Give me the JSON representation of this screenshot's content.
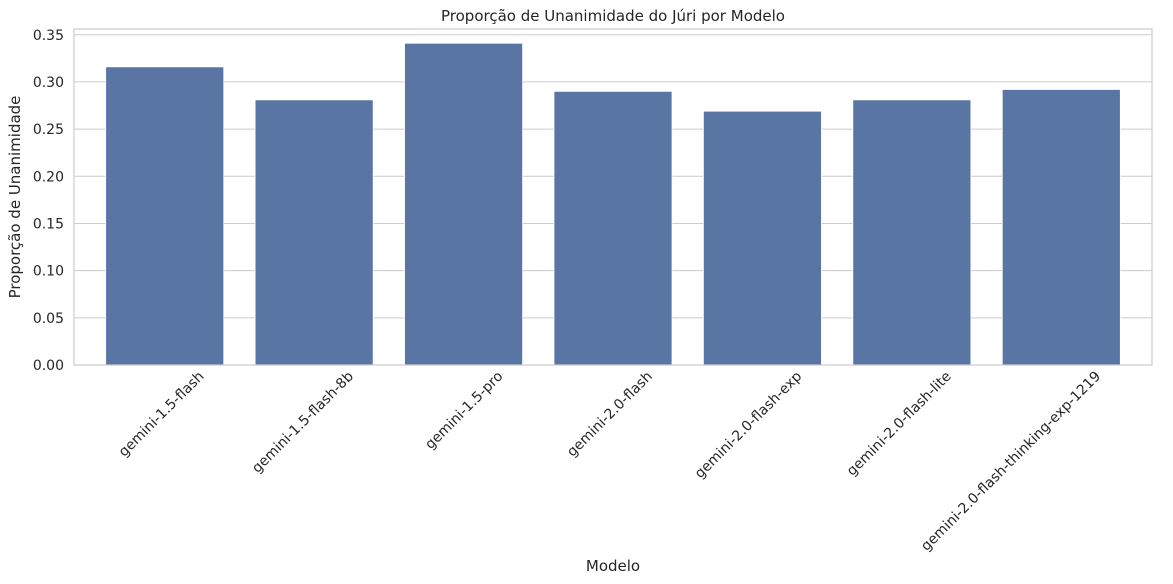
{
  "chart_data": {
    "type": "bar",
    "title": "Proporção de Unanimidade do Júri por Modelo",
    "xlabel": "Modelo",
    "ylabel": "Proporção de Unanimidade",
    "categories": [
      "gemini-1.5-flash",
      "gemini-1.5-flash-8b",
      "gemini-1.5-pro",
      "gemini-2.0-flash",
      "gemini-2.0-flash-exp",
      "gemini-2.0-flash-lite",
      "gemini-2.0-flash-thinking-exp-1219"
    ],
    "values": [
      0.316,
      0.281,
      0.341,
      0.29,
      0.269,
      0.281,
      0.292
    ],
    "ylim": [
      0,
      0.35
    ],
    "yticks": [
      "0.00",
      "0.05",
      "0.10",
      "0.15",
      "0.20",
      "0.25",
      "0.30",
      "0.35"
    ],
    "grid": true,
    "bar_color": "#5875a4",
    "grid_color": "#cccccc",
    "xtick_rotation_deg": 45
  }
}
